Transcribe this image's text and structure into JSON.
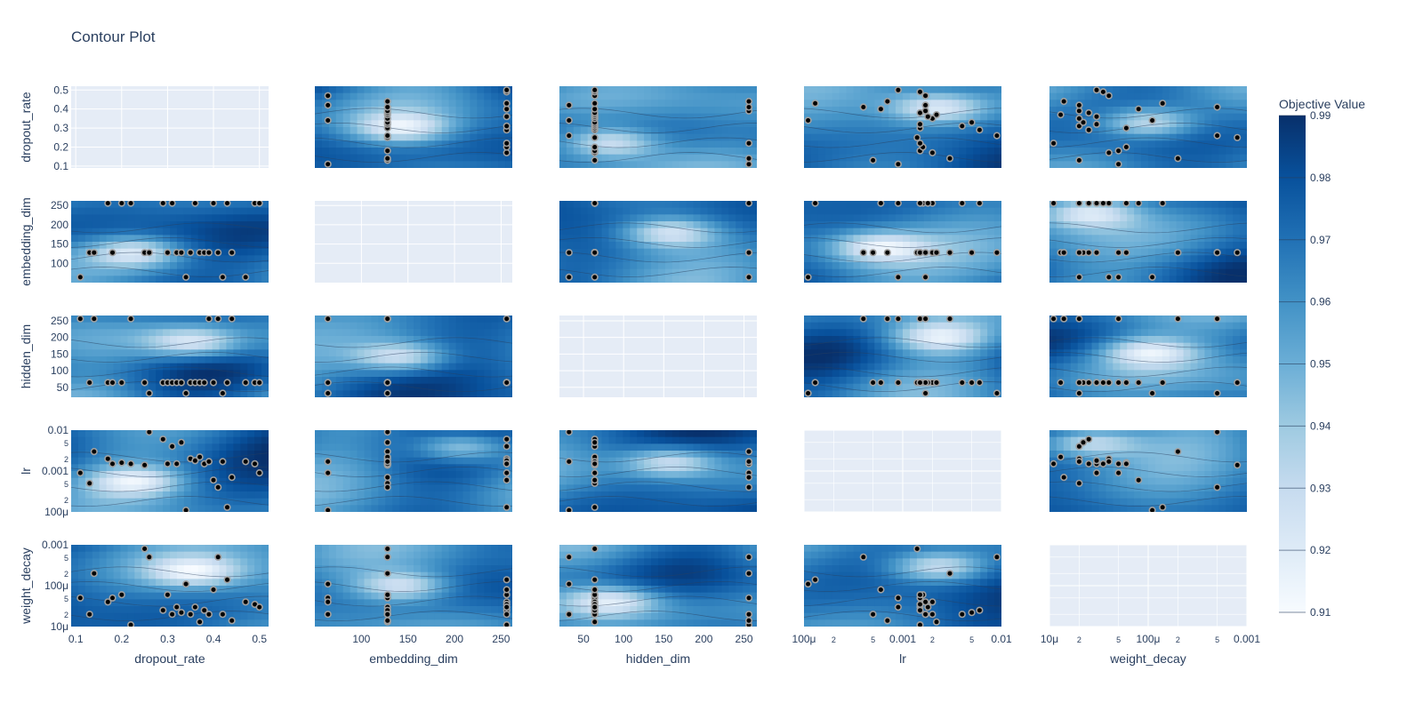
{
  "chart_data": {
    "type": "contour-matrix",
    "title": "Contour Plot",
    "params": [
      "dropout_rate",
      "embedding_dim",
      "hidden_dim",
      "lr",
      "weight_decay"
    ],
    "axes": {
      "dropout_rate": {
        "scale": "linear",
        "range": [
          0.09,
          0.52
        ],
        "ticks": [
          {
            "v": 0.1,
            "label": "0.1"
          },
          {
            "v": 0.2,
            "label": "0.2"
          },
          {
            "v": 0.3,
            "label": "0.3"
          },
          {
            "v": 0.4,
            "label": "0.4"
          },
          {
            "v": 0.5,
            "label": "0.5"
          }
        ]
      },
      "embedding_dim": {
        "scale": "linear",
        "range": [
          50,
          262
        ],
        "ticks": [
          {
            "v": 100,
            "label": "100"
          },
          {
            "v": 150,
            "label": "150"
          },
          {
            "v": 200,
            "label": "200"
          },
          {
            "v": 250,
            "label": "250"
          }
        ]
      },
      "hidden_dim": {
        "scale": "linear",
        "range": [
          20,
          266
        ],
        "ticks": [
          {
            "v": 50,
            "label": "50"
          },
          {
            "v": 100,
            "label": "100"
          },
          {
            "v": 150,
            "label": "150"
          },
          {
            "v": 200,
            "label": "200"
          },
          {
            "v": 250,
            "label": "250"
          }
        ]
      },
      "lr": {
        "scale": "log",
        "range": [
          0.0001,
          0.01
        ],
        "ticks": [
          {
            "v": 0.0001,
            "label": "100μ"
          },
          {
            "v": 0.0002,
            "label": "2",
            "minor": true
          },
          {
            "v": 0.0005,
            "label": "5",
            "minor": true
          },
          {
            "v": 0.001,
            "label": "0.001"
          },
          {
            "v": 0.002,
            "label": "2",
            "minor": true
          },
          {
            "v": 0.005,
            "label": "5",
            "minor": true
          },
          {
            "v": 0.01,
            "label": "0.01"
          }
        ]
      },
      "weight_decay": {
        "scale": "log",
        "range": [
          1e-05,
          0.001
        ],
        "ticks": [
          {
            "v": 1e-05,
            "label": "10μ"
          },
          {
            "v": 2e-05,
            "label": "2",
            "minor": true
          },
          {
            "v": 5e-05,
            "label": "5",
            "minor": true
          },
          {
            "v": 0.0001,
            "label": "100μ"
          },
          {
            "v": 0.0002,
            "label": "2",
            "minor": true
          },
          {
            "v": 0.0005,
            "label": "5",
            "minor": true
          },
          {
            "v": 0.001,
            "label": "0.001"
          }
        ]
      }
    },
    "colorbar": {
      "title": "Objective Value",
      "min": 0.91,
      "max": 0.99,
      "ticks": [
        0.91,
        0.92,
        0.93,
        0.94,
        0.95,
        0.96,
        0.97,
        0.98,
        0.99
      ],
      "colorscale": [
        "#f7fbff",
        "#deebf7",
        "#c6dbef",
        "#9ecae1",
        "#6baed6",
        "#4292c6",
        "#2171b5",
        "#08519c",
        "#08306b"
      ]
    },
    "trials": [
      {
        "dropout_rate": 0.11,
        "embedding_dim": 64,
        "hidden_dim": 256,
        "lr": 0.0009,
        "weight_decay": 5e-05
      },
      {
        "dropout_rate": 0.13,
        "embedding_dim": 128,
        "hidden_dim": 64,
        "lr": 0.0005,
        "weight_decay": 2e-05
      },
      {
        "dropout_rate": 0.14,
        "embedding_dim": 128,
        "hidden_dim": 256,
        "lr": 0.003,
        "weight_decay": 0.0002
      },
      {
        "dropout_rate": 0.17,
        "embedding_dim": 256,
        "hidden_dim": 64,
        "lr": 0.002,
        "weight_decay": 4e-05
      },
      {
        "dropout_rate": 0.18,
        "embedding_dim": 128,
        "hidden_dim": 64,
        "lr": 0.0015,
        "weight_decay": 5e-05
      },
      {
        "dropout_rate": 0.2,
        "embedding_dim": 256,
        "hidden_dim": 64,
        "lr": 0.0016,
        "weight_decay": 6e-05
      },
      {
        "dropout_rate": 0.22,
        "embedding_dim": 256,
        "hidden_dim": 256,
        "lr": 0.0015,
        "weight_decay": 1.1e-05
      },
      {
        "dropout_rate": 0.25,
        "embedding_dim": 128,
        "hidden_dim": 64,
        "lr": 0.0014,
        "weight_decay": 0.0008
      },
      {
        "dropout_rate": 0.26,
        "embedding_dim": 128,
        "hidden_dim": 32,
        "lr": 0.009,
        "weight_decay": 0.0005
      },
      {
        "dropout_rate": 0.29,
        "embedding_dim": 256,
        "hidden_dim": 64,
        "lr": 0.006,
        "weight_decay": 2.5e-05
      },
      {
        "dropout_rate": 0.3,
        "embedding_dim": 128,
        "hidden_dim": 64,
        "lr": 0.0015,
        "weight_decay": 6e-05
      },
      {
        "dropout_rate": 0.31,
        "embedding_dim": 256,
        "hidden_dim": 64,
        "lr": 0.004,
        "weight_decay": 2e-05
      },
      {
        "dropout_rate": 0.32,
        "embedding_dim": 128,
        "hidden_dim": 64,
        "lr": 0.0015,
        "weight_decay": 3e-05
      },
      {
        "dropout_rate": 0.33,
        "embedding_dim": 128,
        "hidden_dim": 64,
        "lr": 0.005,
        "weight_decay": 2.2e-05
      },
      {
        "dropout_rate": 0.34,
        "embedding_dim": 64,
        "hidden_dim": 32,
        "lr": 0.00011,
        "weight_decay": 0.00011
      },
      {
        "dropout_rate": 0.35,
        "embedding_dim": 128,
        "hidden_dim": 64,
        "lr": 0.002,
        "weight_decay": 2e-05
      },
      {
        "dropout_rate": 0.36,
        "embedding_dim": 256,
        "hidden_dim": 64,
        "lr": 0.0018,
        "weight_decay": 3e-05
      },
      {
        "dropout_rate": 0.37,
        "embedding_dim": 128,
        "hidden_dim": 64,
        "lr": 0.0022,
        "weight_decay": 1.3e-05
      },
      {
        "dropout_rate": 0.38,
        "embedding_dim": 128,
        "hidden_dim": 64,
        "lr": 0.0015,
        "weight_decay": 2.5e-05
      },
      {
        "dropout_rate": 0.39,
        "embedding_dim": 128,
        "hidden_dim": 256,
        "lr": 0.0017,
        "weight_decay": 2e-05
      },
      {
        "dropout_rate": 0.4,
        "embedding_dim": 256,
        "hidden_dim": 64,
        "lr": 0.0006,
        "weight_decay": 8e-05
      },
      {
        "dropout_rate": 0.41,
        "embedding_dim": 128,
        "hidden_dim": 256,
        "lr": 0.0004,
        "weight_decay": 0.0005
      },
      {
        "dropout_rate": 0.42,
        "embedding_dim": 64,
        "hidden_dim": 32,
        "lr": 0.0017,
        "weight_decay": 2e-05
      },
      {
        "dropout_rate": 0.43,
        "embedding_dim": 256,
        "hidden_dim": 64,
        "lr": 0.00013,
        "weight_decay": 0.00014
      },
      {
        "dropout_rate": 0.44,
        "embedding_dim": 128,
        "hidden_dim": 256,
        "lr": 0.0007,
        "weight_decay": 1.4e-05
      },
      {
        "dropout_rate": 0.47,
        "embedding_dim": 64,
        "hidden_dim": 64,
        "lr": 0.0017,
        "weight_decay": 4e-05
      },
      {
        "dropout_rate": 0.49,
        "embedding_dim": 256,
        "hidden_dim": 64,
        "lr": 0.0015,
        "weight_decay": 3.5e-05
      },
      {
        "dropout_rate": 0.5,
        "embedding_dim": 256,
        "hidden_dim": 64,
        "lr": 0.0009,
        "weight_decay": 3e-05
      }
    ]
  }
}
